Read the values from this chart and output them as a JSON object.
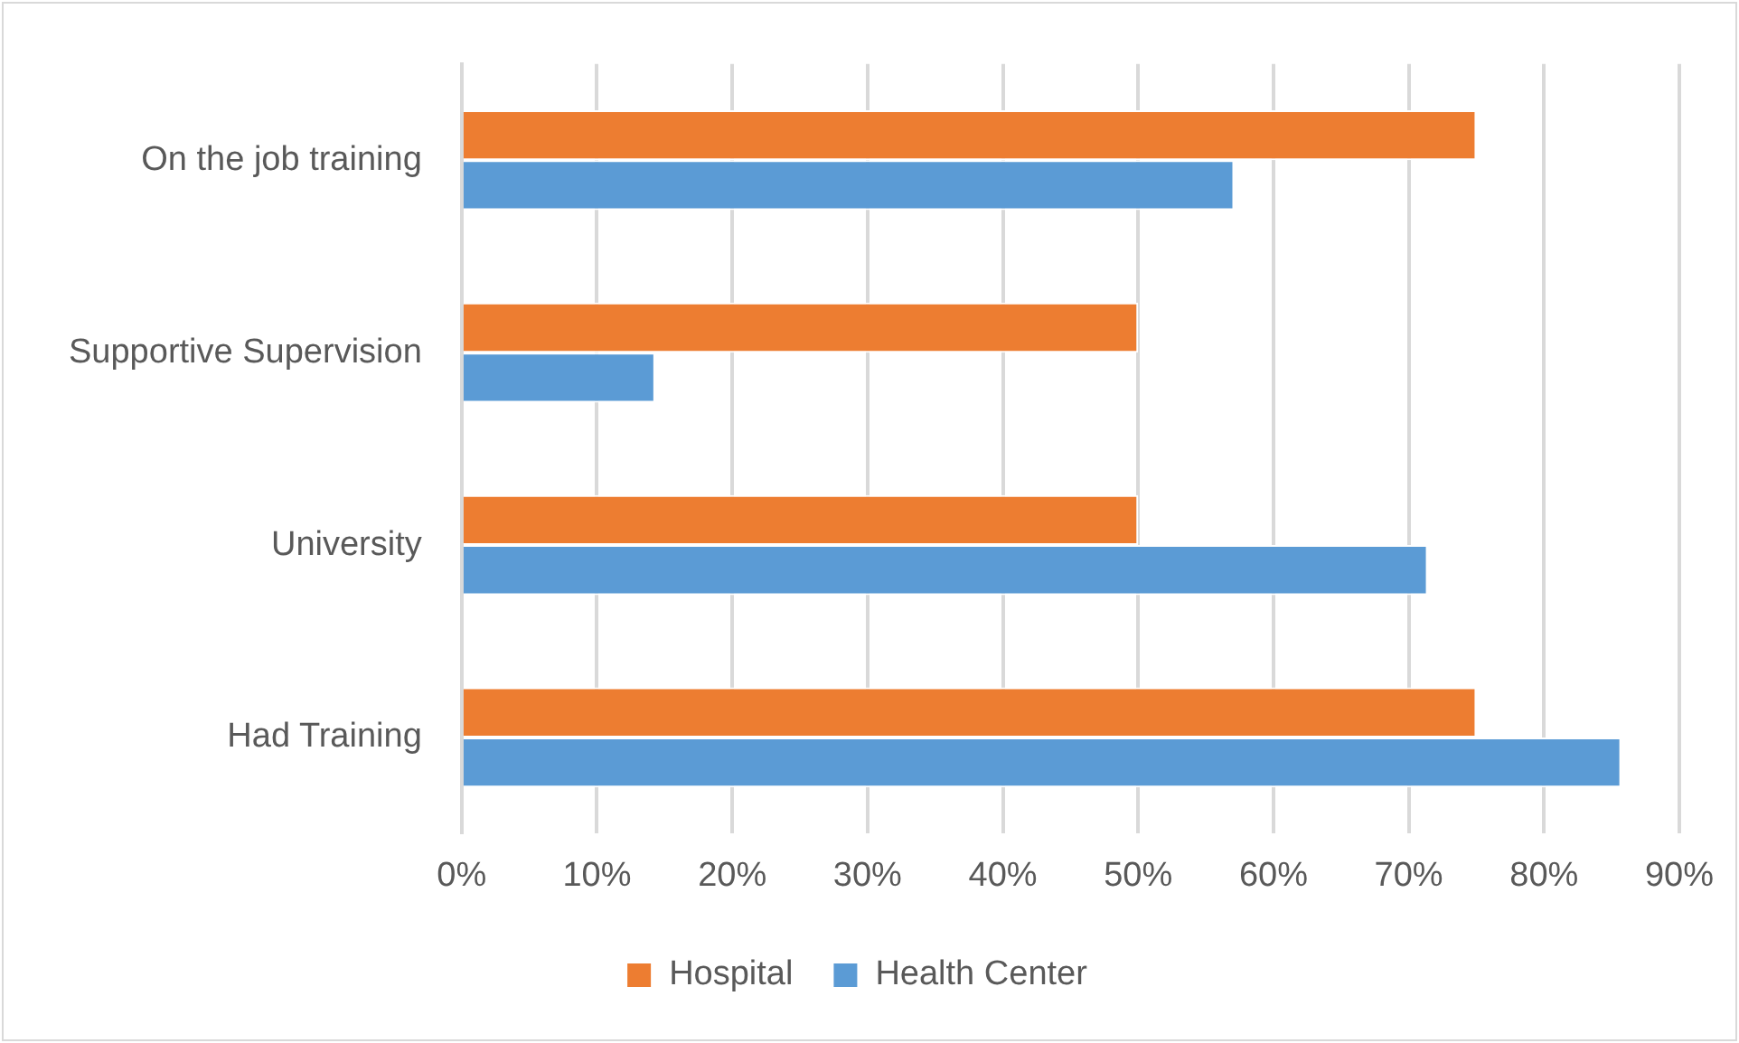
{
  "chart_data": {
    "type": "bar",
    "orientation": "horizontal",
    "categories": [
      "On the job training",
      "Supportive Supervision",
      "University",
      "Had Training"
    ],
    "series": [
      {
        "name": "Hospital",
        "color": "#ed7d31",
        "values": [
          75,
          50,
          50,
          75
        ]
      },
      {
        "name": "Health Center",
        "color": "#5b9bd5",
        "values": [
          57.1,
          14.3,
          71.4,
          85.7
        ]
      }
    ],
    "xlim": [
      0,
      90
    ],
    "xticks": [
      {
        "value": 0,
        "label": "0%"
      },
      {
        "value": 10,
        "label": "10%"
      },
      {
        "value": 20,
        "label": "20%"
      },
      {
        "value": 30,
        "label": "30%"
      },
      {
        "value": 40,
        "label": "40%"
      },
      {
        "value": 50,
        "label": "50%"
      },
      {
        "value": 60,
        "label": "60%"
      },
      {
        "value": 70,
        "label": "70%"
      },
      {
        "value": 80,
        "label": "80%"
      },
      {
        "value": 90,
        "label": "90%"
      }
    ],
    "grid": "x",
    "legend": "bottom"
  }
}
